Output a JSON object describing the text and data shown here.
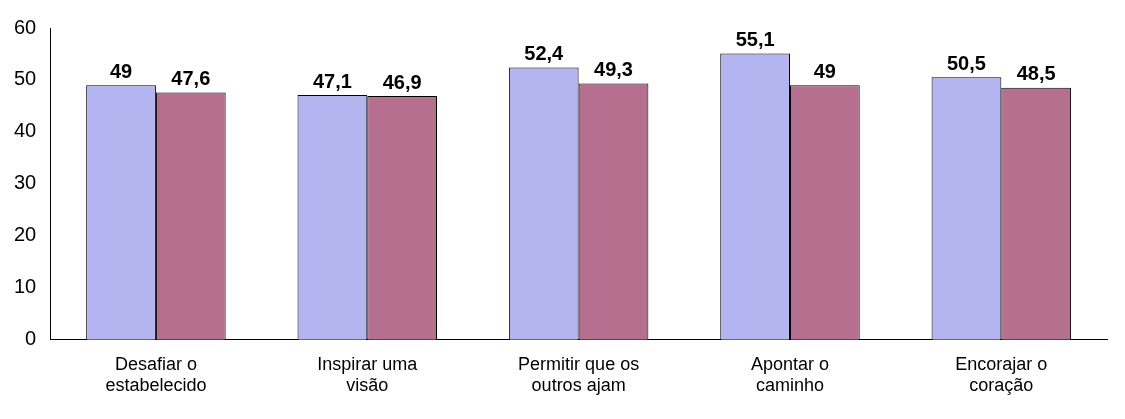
{
  "chart_data": {
    "type": "bar",
    "categories": [
      "Desafiar o\nestabelecido",
      "Inspirar uma\nvisão",
      "Permitir que os\noutros ajam",
      "Apontar o\ncaminho",
      "Encorajar o\ncoração"
    ],
    "series": [
      {
        "color": "#b4b4f0",
        "values": [
          49,
          47.1,
          52.4,
          55.1,
          50.5
        ],
        "value_labels": [
          "49",
          "47,1",
          "52,4",
          "55,1",
          "50,5"
        ]
      },
      {
        "color": "#b4708e",
        "values": [
          47.6,
          46.9,
          49.3,
          49,
          48.5
        ],
        "value_labels": [
          "47,6",
          "46,9",
          "49,3",
          "49",
          "48,5"
        ]
      }
    ],
    "ylim": [
      0,
      60
    ],
    "yticks": [
      0,
      10,
      20,
      30,
      40,
      50,
      60
    ],
    "grid": false,
    "legend": false
  }
}
